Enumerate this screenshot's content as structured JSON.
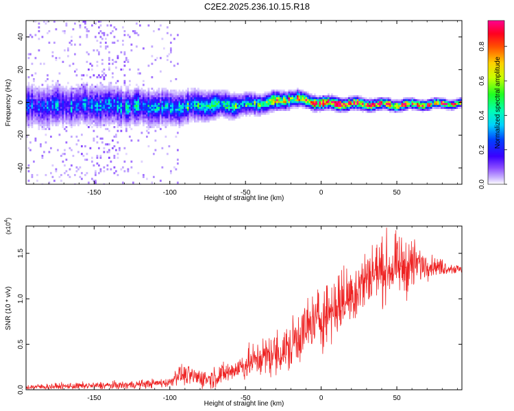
{
  "title": "C2E2.2025.236.10.15.R18",
  "chart_data": [
    {
      "type": "heatmap",
      "title": "C2E2.2025.236.10.15.R18",
      "xlabel": "Height of straight line (km)",
      "ylabel": "Frequency (Hz)",
      "xlim": [
        -195,
        93
      ],
      "ylim": [
        -50,
        50
      ],
      "xticks": [
        -150,
        -100,
        -50,
        0,
        50
      ],
      "yticks": [
        -40,
        -20,
        0,
        20,
        40
      ],
      "colorbar": {
        "label": "Normalized spectral amplitude",
        "range": [
          0.0,
          0.95
        ],
        "ticks": [
          0.0,
          0.2,
          0.4,
          0.6,
          0.8
        ]
      },
      "ridge_center_hz": [
        {
          "x": -195,
          "y": -2
        },
        {
          "x": -150,
          "y": -1
        },
        {
          "x": -100,
          "y": -3
        },
        {
          "x": -75,
          "y": -1
        },
        {
          "x": -50,
          "y": -1
        },
        {
          "x": -30,
          "y": 1
        },
        {
          "x": -20,
          "y": 3
        },
        {
          "x": 0,
          "y": 0
        },
        {
          "x": 50,
          "y": -1
        },
        {
          "x": 93,
          "y": 0
        }
      ],
      "ridge_halfwidth_hz": [
        {
          "x": -195,
          "y": 10
        },
        {
          "x": -100,
          "y": 8
        },
        {
          "x": -50,
          "y": 5
        },
        {
          "x": 0,
          "y": 3
        },
        {
          "x": 93,
          "y": 2
        }
      ],
      "peak_amplitude": [
        {
          "x": -195,
          "y": 0.2
        },
        {
          "x": -100,
          "y": 0.3
        },
        {
          "x": -50,
          "y": 0.45
        },
        {
          "x": -20,
          "y": 0.7
        },
        {
          "x": 0,
          "y": 0.9
        },
        {
          "x": 93,
          "y": 0.65
        }
      ]
    },
    {
      "type": "line",
      "xlabel": "Height of straight line (km)",
      "ylabel": "SNR (10 * v/v)",
      "scale_note": "(x10^4)",
      "scale_base": "(x10",
      "scale_exp": "4",
      "scale_close": ")",
      "xlim": [
        -195,
        93
      ],
      "ylim": [
        0.0,
        1.8
      ],
      "xticks": [
        -150,
        -100,
        -50,
        0,
        50
      ],
      "yticks": [
        0.0,
        0.5,
        1.0,
        1.5
      ],
      "series": [
        {
          "name": "SNR",
          "color": "#ee2222",
          "envelope_mean": [
            {
              "x": -195,
              "y": 0.03
            },
            {
              "x": -130,
              "y": 0.05
            },
            {
              "x": -100,
              "y": 0.08
            },
            {
              "x": -95,
              "y": 0.17
            },
            {
              "x": -75,
              "y": 0.12
            },
            {
              "x": -60,
              "y": 0.2
            },
            {
              "x": -40,
              "y": 0.35
            },
            {
              "x": -20,
              "y": 0.45
            },
            {
              "x": -18,
              "y": 0.55
            },
            {
              "x": 0,
              "y": 0.8
            },
            {
              "x": 20,
              "y": 1.05
            },
            {
              "x": 35,
              "y": 1.3
            },
            {
              "x": 50,
              "y": 1.35
            },
            {
              "x": 65,
              "y": 1.38
            },
            {
              "x": 93,
              "y": 1.32
            }
          ],
          "envelope_spread": [
            {
              "x": -195,
              "y": 0.03
            },
            {
              "x": -100,
              "y": 0.05
            },
            {
              "x": -95,
              "y": 0.1
            },
            {
              "x": -60,
              "y": 0.12
            },
            {
              "x": -20,
              "y": 0.28
            },
            {
              "x": 0,
              "y": 0.35
            },
            {
              "x": 30,
              "y": 0.35
            },
            {
              "x": 60,
              "y": 0.3
            },
            {
              "x": 70,
              "y": 0.12
            },
            {
              "x": 93,
              "y": 0.04
            }
          ]
        }
      ]
    }
  ]
}
